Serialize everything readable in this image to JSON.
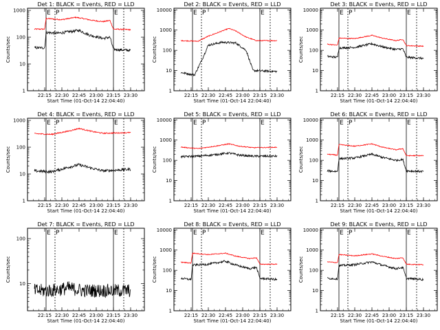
{
  "chart_data": [
    {
      "type": "line",
      "title": "Det 1: BLACK = Events, RED = LLD",
      "ylabel": "Counts/sec",
      "xlabel": "Start Time (01-Oct-14 22:04:40)",
      "x_ticks": [
        "22:15",
        "22:30",
        "22:45",
        "23:00",
        "23:15",
        "23:30"
      ],
      "y_ticks": [
        "1",
        "10",
        "100",
        "1000"
      ],
      "ylim": [
        1,
        1200
      ],
      "yscale": "log",
      "flags": [
        "E",
        "P",
        "E"
      ],
      "series": [
        {
          "color": "#ff0000",
          "points": [
            [
              22.1,
              200
            ],
            [
              22.25,
              200
            ],
            [
              22.27,
              500
            ],
            [
              22.5,
              450
            ],
            [
              22.7,
              550
            ],
            [
              22.8,
              500
            ],
            [
              22.95,
              420
            ],
            [
              23.1,
              380
            ],
            [
              23.2,
              420
            ],
            [
              23.25,
              200
            ],
            [
              23.5,
              190
            ]
          ]
        },
        {
          "color": "#000000",
          "points": [
            [
              22.1,
              40
            ],
            [
              22.25,
              40
            ],
            [
              22.27,
              150
            ],
            [
              22.45,
              140
            ],
            [
              22.75,
              180
            ],
            [
              22.9,
              120
            ],
            [
              23.1,
              90
            ],
            [
              23.2,
              100
            ],
            [
              23.25,
              35
            ],
            [
              23.5,
              32
            ]
          ]
        }
      ]
    },
    {
      "type": "line",
      "title": "Det 2: BLACK = Events, RED = LLD",
      "ylabel": "Counts/sec",
      "xlabel": "Start Time (01-Oct-14 22:04:40)",
      "x_ticks": [
        "22:15",
        "22:30",
        "22:45",
        "23:00",
        "23:15",
        "23:30"
      ],
      "y_ticks": [
        "1",
        "10",
        "100",
        "1000",
        "10000"
      ],
      "ylim": [
        1,
        12000
      ],
      "yscale": "log",
      "flags": [
        "E",
        "P",
        "E"
      ],
      "series": [
        {
          "color": "#ff0000",
          "points": [
            [
              22.1,
              300
            ],
            [
              22.35,
              280
            ],
            [
              22.5,
              500
            ],
            [
              22.7,
              900
            ],
            [
              22.8,
              1200
            ],
            [
              22.9,
              900
            ],
            [
              23.05,
              450
            ],
            [
              23.2,
              300
            ],
            [
              23.5,
              300
            ]
          ]
        },
        {
          "color": "#000000",
          "points": [
            [
              22.1,
              8
            ],
            [
              22.3,
              6
            ],
            [
              22.4,
              30
            ],
            [
              22.5,
              180
            ],
            [
              22.7,
              250
            ],
            [
              22.9,
              230
            ],
            [
              23.05,
              100
            ],
            [
              23.15,
              10
            ],
            [
              23.5,
              9
            ]
          ]
        }
      ]
    },
    {
      "type": "line",
      "title": "Det 3: BLACK = Events, RED = LLD",
      "ylabel": "Counts/sec",
      "xlabel": "Start Time (01-Oct-14 22:04:40)",
      "x_ticks": [
        "22:15",
        "22:30",
        "22:45",
        "23:00",
        "23:15",
        "23:30"
      ],
      "y_ticks": [
        "1",
        "10",
        "100",
        "1000",
        "10000"
      ],
      "ylim": [
        1,
        12000
      ],
      "yscale": "log",
      "flags": [
        "E",
        "P",
        "E"
      ],
      "series": [
        {
          "color": "#ff0000",
          "points": [
            [
              22.1,
              200
            ],
            [
              22.25,
              180
            ],
            [
              22.27,
              400
            ],
            [
              22.5,
              380
            ],
            [
              22.75,
              550
            ],
            [
              22.9,
              400
            ],
            [
              23.1,
              300
            ],
            [
              23.2,
              350
            ],
            [
              23.25,
              170
            ],
            [
              23.5,
              160
            ]
          ]
        },
        {
          "color": "#000000",
          "points": [
            [
              22.1,
              50
            ],
            [
              22.25,
              45
            ],
            [
              22.27,
              130
            ],
            [
              22.5,
              140
            ],
            [
              22.75,
              210
            ],
            [
              22.9,
              150
            ],
            [
              23.1,
              110
            ],
            [
              23.2,
              120
            ],
            [
              23.25,
              45
            ],
            [
              23.5,
              40
            ]
          ]
        }
      ]
    },
    {
      "type": "line",
      "title": "Det 4: BLACK = Events, RED = LLD",
      "ylabel": "Counts/sec",
      "xlabel": "Start Time (01-Oct-14 22:04:40)",
      "x_ticks": [
        "22:15",
        "22:30",
        "22:45",
        "23:00",
        "23:15",
        "23:30"
      ],
      "y_ticks": [
        "1",
        "10",
        "100",
        "1000"
      ],
      "ylim": [
        1,
        1200
      ],
      "yscale": "log",
      "flags": [
        "E",
        "P",
        "E"
      ],
      "series": [
        {
          "color": "#ff0000",
          "points": [
            [
              22.1,
              320
            ],
            [
              22.35,
              300
            ],
            [
              22.6,
              400
            ],
            [
              22.75,
              500
            ],
            [
              22.95,
              380
            ],
            [
              23.1,
              330
            ],
            [
              23.5,
              350
            ]
          ]
        },
        {
          "color": "#000000",
          "points": [
            [
              22.1,
              13
            ],
            [
              22.35,
              12
            ],
            [
              22.6,
              18
            ],
            [
              22.75,
              22
            ],
            [
              22.95,
              16
            ],
            [
              23.1,
              13
            ],
            [
              23.5,
              15
            ]
          ]
        }
      ]
    },
    {
      "type": "line",
      "title": "Det 5: BLACK = Events, RED = LLD",
      "ylabel": "Counts/sec",
      "xlabel": "Start Time (01-Oct-14 22:04:40)",
      "x_ticks": [
        "22:15",
        "22:30",
        "22:45",
        "23:00",
        "23:15",
        "23:30"
      ],
      "y_ticks": [
        "1",
        "10",
        "100",
        "1000",
        "10000"
      ],
      "ylim": [
        1,
        12000
      ],
      "yscale": "log",
      "flags": [
        "E",
        "P",
        "E"
      ],
      "series": [
        {
          "color": "#ff0000",
          "points": [
            [
              22.1,
              450
            ],
            [
              22.35,
              380
            ],
            [
              22.6,
              500
            ],
            [
              22.8,
              650
            ],
            [
              22.95,
              500
            ],
            [
              23.15,
              420
            ],
            [
              23.5,
              440
            ]
          ]
        },
        {
          "color": "#000000",
          "points": [
            [
              22.1,
              150
            ],
            [
              22.35,
              160
            ],
            [
              22.6,
              190
            ],
            [
              22.8,
              230
            ],
            [
              22.95,
              180
            ],
            [
              23.15,
              160
            ],
            [
              23.5,
              160
            ]
          ]
        }
      ]
    },
    {
      "type": "line",
      "title": "Det 6: BLACK = Events, RED = LLD",
      "ylabel": "Counts/sec",
      "xlabel": "Start Time (01-Oct-14 22:04:40)",
      "x_ticks": [
        "22:15",
        "22:30",
        "22:45",
        "23:00",
        "23:15",
        "23:30"
      ],
      "y_ticks": [
        "1",
        "10",
        "100",
        "1000",
        "10000"
      ],
      "ylim": [
        1,
        12000
      ],
      "yscale": "log",
      "flags": [
        "E",
        "P",
        "E"
      ],
      "series": [
        {
          "color": "#ff0000",
          "points": [
            [
              22.1,
              200
            ],
            [
              22.25,
              180
            ],
            [
              22.27,
              600
            ],
            [
              22.5,
              500
            ],
            [
              22.75,
              650
            ],
            [
              22.9,
              450
            ],
            [
              23.1,
              330
            ],
            [
              23.2,
              380
            ],
            [
              23.25,
              170
            ],
            [
              23.5,
              170
            ]
          ]
        },
        {
          "color": "#000000",
          "points": [
            [
              22.1,
              30
            ],
            [
              22.25,
              28
            ],
            [
              22.27,
              120
            ],
            [
              22.5,
              130
            ],
            [
              22.75,
              200
            ],
            [
              22.9,
              140
            ],
            [
              23.1,
              100
            ],
            [
              23.2,
              110
            ],
            [
              23.25,
              30
            ],
            [
              23.5,
              28
            ]
          ]
        }
      ]
    },
    {
      "type": "line",
      "title": "Det 7: BLACK = Events, RED = LLD",
      "ylabel": "Counts/sec",
      "xlabel": "Start Time (01-Oct-14 22:04:40)",
      "x_ticks": [
        "22:15",
        "22:30",
        "22:45",
        "23:00",
        "23:15",
        "23:30"
      ],
      "y_ticks": [
        "10",
        "100"
      ],
      "ylim": [
        2.5,
        170
      ],
      "yscale": "log",
      "flags": [
        "E",
        "P",
        "E"
      ],
      "series": [
        {
          "color": "#000000",
          "points": [
            [
              22.1,
              7
            ],
            [
              22.35,
              7
            ],
            [
              22.6,
              8
            ],
            [
              22.8,
              7
            ],
            [
              23.0,
              7
            ],
            [
              23.2,
              7
            ],
            [
              23.5,
              7
            ]
          ]
        }
      ]
    },
    {
      "type": "line",
      "title": "Det 8: BLACK = Events, RED = LLD",
      "ylabel": "Counts/sec",
      "xlabel": "Start Time (01-Oct-14 22:04:40)",
      "x_ticks": [
        "22:15",
        "22:30",
        "22:45",
        "23:00",
        "23:15",
        "23:30"
      ],
      "y_ticks": [
        "1",
        "10",
        "100",
        "1000",
        "10000"
      ],
      "ylim": [
        1,
        12000
      ],
      "yscale": "log",
      "flags": [
        "E",
        "P",
        "E"
      ],
      "series": [
        {
          "color": "#ff0000",
          "points": [
            [
              22.1,
              250
            ],
            [
              22.25,
              230
            ],
            [
              22.27,
              700
            ],
            [
              22.5,
              600
            ],
            [
              22.75,
              700
            ],
            [
              22.9,
              500
            ],
            [
              23.1,
              380
            ],
            [
              23.2,
              420
            ],
            [
              23.25,
              200
            ],
            [
              23.5,
              200
            ]
          ]
        },
        {
          "color": "#000000",
          "points": [
            [
              22.1,
              40
            ],
            [
              22.25,
              35
            ],
            [
              22.27,
              180
            ],
            [
              22.5,
              200
            ],
            [
              22.75,
              280
            ],
            [
              22.9,
              180
            ],
            [
              23.1,
              120
            ],
            [
              23.2,
              140
            ],
            [
              23.25,
              40
            ],
            [
              23.5,
              35
            ]
          ]
        }
      ]
    },
    {
      "type": "line",
      "title": "Det 9: BLACK = Events, RED = LLD",
      "ylabel": "Counts/sec",
      "xlabel": "Start Time (01-Oct-14 22:04:40)",
      "x_ticks": [
        "22:15",
        "22:30",
        "22:45",
        "23:00",
        "23:15",
        "23:30"
      ],
      "y_ticks": [
        "1",
        "10",
        "100",
        "1000",
        "10000"
      ],
      "ylim": [
        1,
        12000
      ],
      "yscale": "log",
      "flags": [
        "E",
        "P",
        "E"
      ],
      "series": [
        {
          "color": "#ff0000",
          "points": [
            [
              22.1,
              260
            ],
            [
              22.25,
              240
            ],
            [
              22.27,
              600
            ],
            [
              22.5,
              520
            ],
            [
              22.75,
              650
            ],
            [
              22.9,
              500
            ],
            [
              23.1,
              380
            ],
            [
              23.2,
              420
            ],
            [
              23.25,
              200
            ],
            [
              23.5,
              190
            ]
          ]
        },
        {
          "color": "#000000",
          "points": [
            [
              22.1,
              40
            ],
            [
              22.25,
              38
            ],
            [
              22.27,
              170
            ],
            [
              22.5,
              190
            ],
            [
              22.75,
              260
            ],
            [
              22.9,
              180
            ],
            [
              23.1,
              120
            ],
            [
              23.2,
              140
            ],
            [
              23.25,
              40
            ],
            [
              23.5,
              35
            ]
          ]
        }
      ]
    }
  ]
}
